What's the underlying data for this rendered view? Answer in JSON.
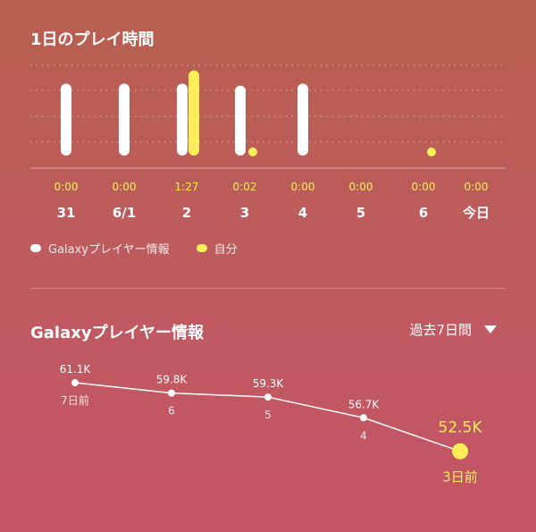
{
  "play_section": {
    "title": "1日のプレイ時間",
    "legend": {
      "galaxy_label": "Galaxyプレイヤー情報",
      "self_label": "自分",
      "galaxy_color": "#ffffff",
      "self_color": "#ffee58"
    }
  },
  "chart_data": [
    {
      "type": "bar",
      "categories": [
        "31",
        "6/1",
        "2",
        "3",
        "4",
        "5",
        "6",
        "今日"
      ],
      "time_labels": [
        "0:00",
        "0:00",
        "1:27",
        "0:02",
        "0:00",
        "0:00",
        "0:00",
        "0:00"
      ],
      "series": [
        {
          "name": "Galaxyプレイヤー情報",
          "values": [
            82,
            82,
            82,
            80,
            82,
            0,
            0,
            0
          ]
        },
        {
          "name": "自分",
          "values": [
            0,
            0,
            95,
            2,
            0,
            0,
            2,
            0
          ]
        }
      ],
      "ylim": [
        0,
        100
      ],
      "grid": true
    },
    {
      "type": "line",
      "x": [
        "7日前",
        "6",
        "5",
        "4",
        "3日前"
      ],
      "values": [
        61.1,
        59.8,
        59.3,
        56.7,
        52.5
      ],
      "value_labels": [
        "61.1K",
        "59.8K",
        "59.3K",
        "56.7K",
        "52.5K"
      ],
      "ylim": [
        50,
        62
      ]
    }
  ],
  "galaxy_section": {
    "title": "Galaxyプレイヤー情報",
    "range_value": "過去7日間"
  }
}
